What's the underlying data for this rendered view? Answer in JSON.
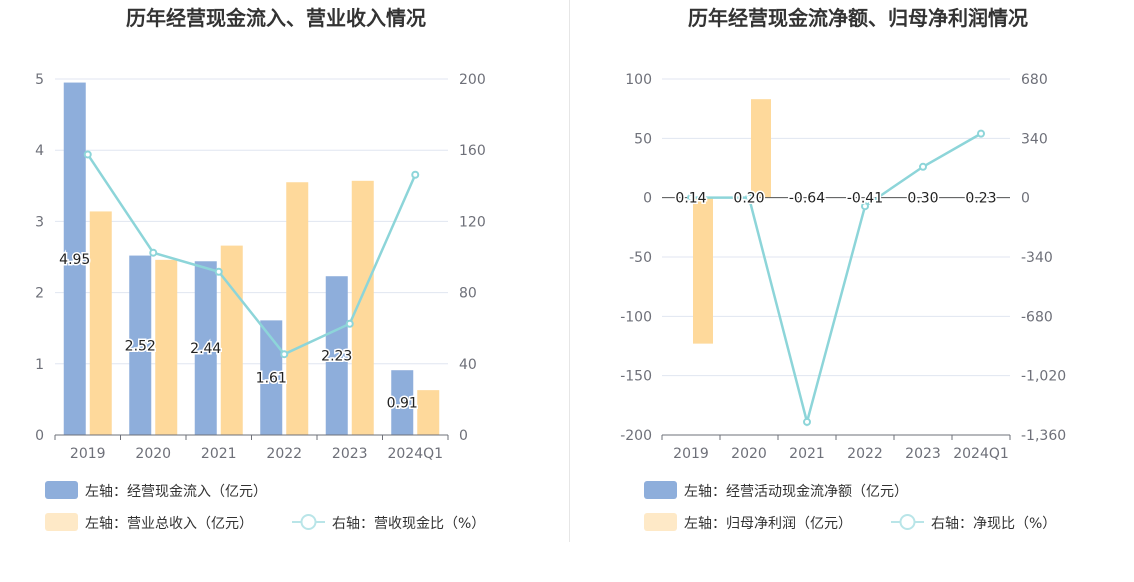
{
  "colors": {
    "bar_blue": "#8eaedb",
    "bar_orange": "#fed99b",
    "line_cyan": "#8dd5d9",
    "grid": "#e0e6f1",
    "axis": "#6e7079"
  },
  "chart_data": [
    {
      "type": "bar",
      "title": "历年经营现金流入、营业收入情况",
      "categories": [
        "2019",
        "2020",
        "2021",
        "2022",
        "2023",
        "2024Q1"
      ],
      "left_axis": {
        "min": 0,
        "max": 5,
        "ticks": [
          "0",
          "1",
          "2",
          "3",
          "4",
          "5"
        ]
      },
      "right_axis": {
        "min": 0,
        "max": 200,
        "ticks": [
          "0",
          "40",
          "80",
          "120",
          "160",
          "200"
        ]
      },
      "series": [
        {
          "name": "左轴：经营现金流入（亿元）",
          "type": "bar",
          "axis": "left",
          "values": [
            4.95,
            2.52,
            2.44,
            1.61,
            2.23,
            0.91
          ],
          "labels": [
            "4.95",
            "2.52",
            "2.44",
            "1.61",
            "2.23",
            "0.91"
          ]
        },
        {
          "name": "左轴：营业总收入（亿元）",
          "type": "bar",
          "axis": "left",
          "values": [
            3.14,
            2.46,
            2.66,
            3.55,
            3.57,
            0.63
          ]
        },
        {
          "name": "右轴：营收现金比（%）",
          "type": "line",
          "axis": "right",
          "values": [
            157.6,
            102.4,
            91.7,
            45.4,
            62.5,
            146.2
          ]
        }
      ]
    },
    {
      "type": "bar",
      "title": "历年经营现金流净额、归母净利润情况",
      "categories": [
        "2019",
        "2020",
        "2021",
        "2022",
        "2023",
        "2024Q1"
      ],
      "left_axis": {
        "min": -200,
        "max": 100,
        "ticks": [
          "-200",
          "-150",
          "-100",
          "-50",
          "0",
          "50",
          "100"
        ]
      },
      "right_axis": {
        "min": -1360,
        "max": 680,
        "ticks": [
          "-1,360",
          "-1,020",
          "-680",
          "-340",
          "0",
          "340",
          "680"
        ]
      },
      "series": [
        {
          "name": "左轴：经营活动现金流净额（亿元）",
          "type": "bar",
          "axis": "left",
          "values": [
            0.14,
            0.2,
            -0.64,
            -0.41,
            0.3,
            0.23
          ],
          "labels": [
            "0.14",
            "0.20",
            "-0.64",
            "-0.41",
            "0.30",
            "0.23"
          ]
        },
        {
          "name": "左轴：归母净利润（亿元）",
          "type": "bar",
          "axis": "left",
          "values": [
            -123,
            83,
            0,
            0,
            0,
            0
          ]
        },
        {
          "name": "右轴：净现比（%）",
          "type": "line",
          "axis": "right",
          "values": [
            0,
            0,
            -1285,
            -49,
            177,
            367
          ]
        }
      ]
    }
  ]
}
